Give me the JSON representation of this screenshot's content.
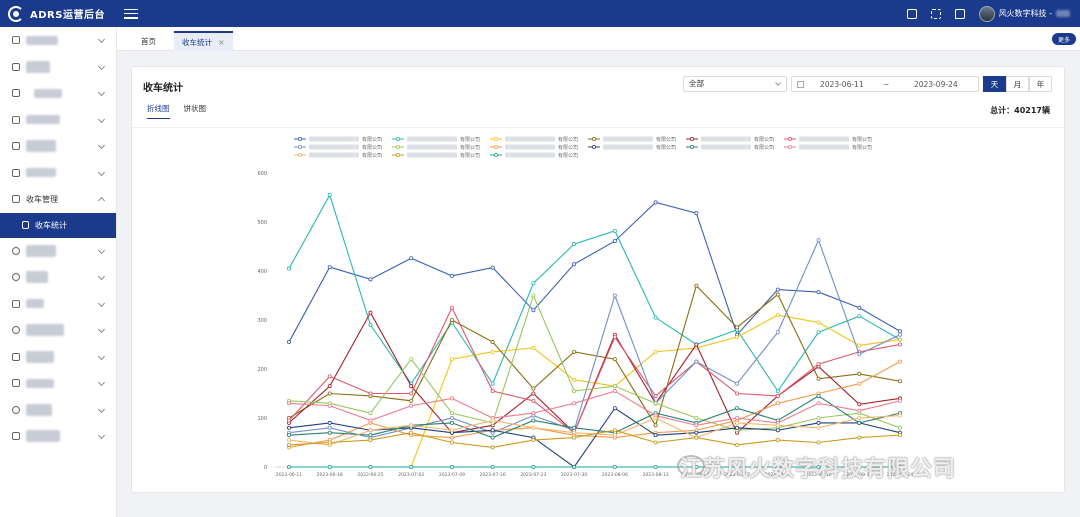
{
  "app": {
    "title": "ADRS运营后台"
  },
  "header": {
    "user_name": "风火数字科技 -"
  },
  "sidebar": {
    "group_label": "收车管理",
    "active_label": "收车统计"
  },
  "tabs": [
    {
      "label": "首页"
    },
    {
      "label": "收车统计",
      "close": "×"
    }
  ],
  "more_label": "更多",
  "page": {
    "title": "收车统计",
    "select_value": "全部",
    "date_start": "2023-06-11",
    "date_sep": "~",
    "date_end": "2023-09-24",
    "granularity": [
      "天",
      "月",
      "年"
    ],
    "view_tabs": [
      "折线图",
      "饼状图"
    ],
    "total_label": "总计：40217辆"
  },
  "watermark": "江苏风火数字科技有限公司",
  "chart_data": {
    "type": "line",
    "ylim": [
      0,
      600
    ],
    "yticks": [
      0,
      100,
      200,
      300,
      400,
      500,
      600
    ],
    "categories": [
      "2023-06-11",
      "2023-06-18",
      "2023-06-25",
      "2023-07-02",
      "2023-07-09",
      "2023-07-16",
      "2023-07-23",
      "2023-07-30",
      "2023-08-06",
      "2023-08-13",
      "2023-08-20",
      "2023-08-27",
      "2023-09-03",
      "2023-09-10",
      "2023-09-17",
      "2023-09-24"
    ],
    "legend_suffix": "有限公司",
    "series": [
      {
        "color": "#3c5fb5",
        "values": [
          255,
          408,
          383,
          426,
          390,
          407,
          320,
          414,
          461,
          540,
          518,
          270,
          362,
          357,
          325,
          277
        ]
      },
      {
        "color": "#2ab8ae",
        "values": [
          405,
          555,
          290,
          170,
          295,
          170,
          375,
          455,
          482,
          305,
          250,
          280,
          155,
          275,
          308,
          260
        ]
      },
      {
        "color": "#f2c318",
        "values": [
          0,
          0,
          0,
          0,
          220,
          235,
          243,
          178,
          165,
          235,
          243,
          265,
          310,
          295,
          248,
          260
        ]
      },
      {
        "color": "#8a6d12",
        "values": [
          100,
          150,
          145,
          135,
          300,
          255,
          160,
          235,
          220,
          85,
          370,
          285,
          352,
          180,
          190,
          175
        ]
      },
      {
        "color": "#a51e2a",
        "values": [
          90,
          165,
          315,
          165,
          70,
          85,
          150,
          70,
          270,
          130,
          250,
          70,
          145,
          205,
          128,
          140
        ]
      },
      {
        "color": "#e0556a",
        "values": [
          95,
          185,
          150,
          150,
          325,
          155,
          135,
          70,
          265,
          145,
          215,
          150,
          145,
          210,
          235,
          250
        ]
      },
      {
        "color": "#6f8fc9",
        "values": [
          70,
          80,
          60,
          80,
          100,
          70,
          105,
          75,
          350,
          130,
          215,
          170,
          275,
          463,
          230,
          270
        ]
      },
      {
        "color": "#96c85a",
        "values": [
          135,
          130,
          110,
          220,
          110,
          90,
          350,
          155,
          165,
          130,
          100,
          75,
          80,
          100,
          110,
          80
        ]
      },
      {
        "color": "#f29a4a",
        "values": [
          40,
          55,
          90,
          65,
          60,
          75,
          80,
          65,
          60,
          70,
          75,
          95,
          130,
          150,
          170,
          215
        ]
      },
      {
        "color": "#1f3f7a",
        "values": [
          80,
          90,
          75,
          80,
          70,
          75,
          60,
          0,
          120,
          65,
          70,
          80,
          75,
          90,
          90,
          70
        ]
      },
      {
        "color": "#2a7f6e",
        "values": [
          65,
          70,
          65,
          85,
          90,
          60,
          95,
          80,
          70,
          110,
          90,
          120,
          95,
          145,
          90,
          110
        ]
      },
      {
        "color": "#f07a8c",
        "values": [
          130,
          125,
          95,
          125,
          140,
          100,
          110,
          130,
          155,
          105,
          85,
          100,
          90,
          130,
          115,
          135
        ]
      },
      {
        "color": "#f5b56a",
        "values": [
          55,
          45,
          75,
          85,
          75,
          95,
          80,
          70,
          65,
          100,
          60,
          90,
          85,
          80,
          100,
          105
        ]
      },
      {
        "color": "#c99a1c",
        "values": [
          45,
          50,
          55,
          70,
          50,
          40,
          55,
          60,
          75,
          50,
          60,
          45,
          55,
          50,
          60,
          65
        ]
      },
      {
        "color": "#1aa59c",
        "values": [
          0,
          0,
          0,
          0,
          0,
          0,
          0,
          0,
          0,
          0,
          0,
          0,
          0,
          0,
          0,
          0
        ]
      }
    ]
  }
}
